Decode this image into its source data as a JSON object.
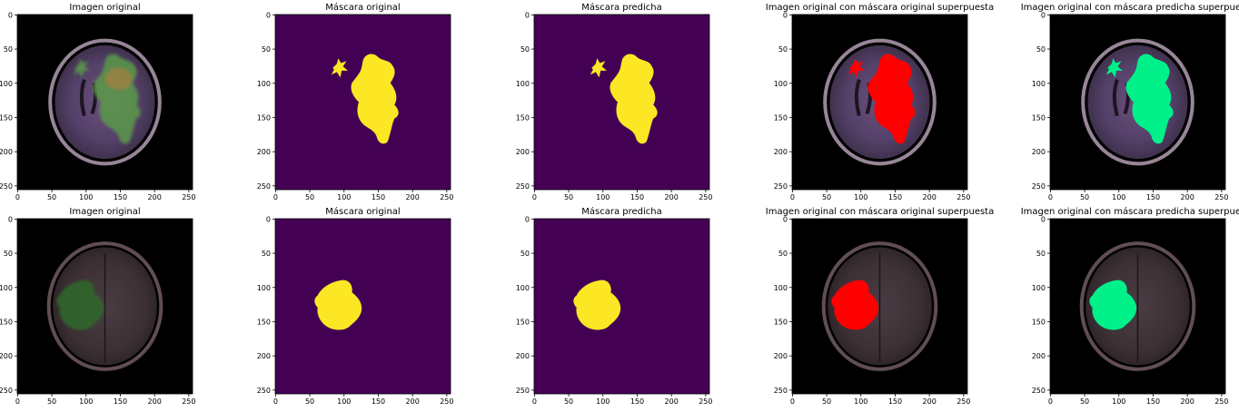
{
  "figure": {
    "background": "#ffffff",
    "axis_ticks": {
      "x": [
        "0",
        "50",
        "100",
        "150",
        "200",
        "250"
      ],
      "y": [
        "0",
        "50",
        "100",
        "150",
        "200",
        "250"
      ]
    },
    "colors": {
      "mask_background": "#440154",
      "mask_foreground": "#fde725",
      "overlay_original": "#ff0000",
      "overlay_predicted": "#00f08a",
      "scan_background": "#000000"
    },
    "rows": [
      {
        "panels": [
          {
            "title": "Imagen original",
            "kind": "scan",
            "tumor": "row1"
          },
          {
            "title": "Máscara original",
            "kind": "mask",
            "tumor": "row1"
          },
          {
            "title": "Máscara predicha",
            "kind": "mask",
            "tumor": "row1"
          },
          {
            "title": "Imagen original con máscara original superpuesta",
            "kind": "overlay-original",
            "tumor": "row1"
          },
          {
            "title": "Imagen original con máscara predicha superpuesta",
            "kind": "overlay-predicted",
            "tumor": "row1"
          }
        ]
      },
      {
        "panels": [
          {
            "title": "Imagen original",
            "kind": "scan",
            "tumor": "row2"
          },
          {
            "title": "Máscara original",
            "kind": "mask",
            "tumor": "row2"
          },
          {
            "title": "Máscara predicha",
            "kind": "mask",
            "tumor": "row2"
          },
          {
            "title": "Imagen original con máscara original superpuesta",
            "kind": "overlay-original",
            "tumor": "row2"
          },
          {
            "title": "Imagen original con máscara predicha superpuesta",
            "kind": "overlay-predicted",
            "tumor": "row2"
          }
        ]
      }
    ]
  }
}
